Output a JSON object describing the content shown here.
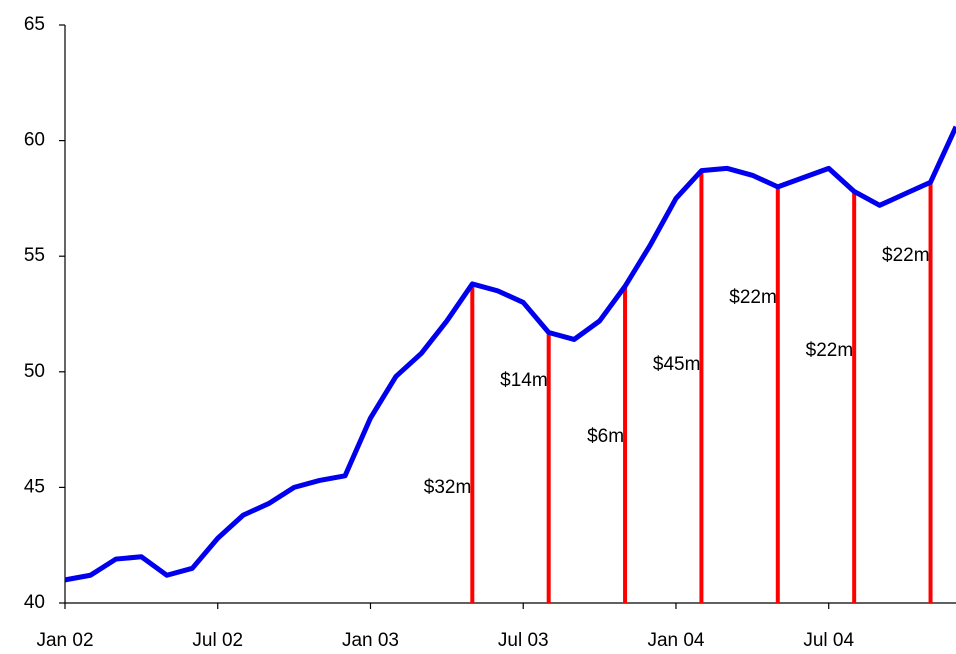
{
  "chart_data": {
    "type": "line",
    "x": [
      "2002-01",
      "2002-02",
      "2002-03",
      "2002-04",
      "2002-05",
      "2002-06",
      "2002-07",
      "2002-08",
      "2002-09",
      "2002-10",
      "2002-11",
      "2002-12",
      "2003-01",
      "2003-02",
      "2003-03",
      "2003-04",
      "2003-05",
      "2003-06",
      "2003-07",
      "2003-08",
      "2003-09",
      "2003-10",
      "2003-11",
      "2003-12",
      "2004-01",
      "2004-02",
      "2004-03",
      "2004-04",
      "2004-05",
      "2004-06",
      "2004-07",
      "2004-08",
      "2004-09",
      "2004-10",
      "2004-11",
      "2004-12"
    ],
    "series": [
      {
        "color": "#0000ee",
        "values": [
          41.0,
          41.2,
          41.9,
          42.0,
          41.2,
          41.5,
          42.8,
          43.8,
          44.3,
          45.0,
          45.3,
          45.5,
          48.0,
          49.8,
          50.8,
          52.2,
          53.8,
          53.5,
          53.0,
          51.7,
          51.4,
          52.2,
          53.7,
          55.5,
          57.5,
          58.7,
          58.8,
          58.5,
          58.0,
          58.4,
          58.8,
          57.8,
          57.2,
          57.7,
          58.2,
          60.6
        ]
      }
    ],
    "events": {
      "color": "#ff0000",
      "x": [
        "2003-05",
        "2003-08",
        "2003-11",
        "2004-02",
        "2004-05",
        "2004-08",
        "2004-11"
      ],
      "values": [
        32,
        14,
        6,
        45,
        22,
        22,
        22
      ],
      "value_labels": [
        "$32m",
        "$14m",
        "$6m",
        "$45m",
        "$22m",
        "$22m",
        "$22m"
      ]
    },
    "xlim": [
      "2002-01",
      "2004-12"
    ],
    "xticks": [
      {
        "value": "2002-01",
        "label": "Jan 02"
      },
      {
        "value": "2002-07",
        "label": "Jul 02"
      },
      {
        "value": "2003-01",
        "label": "Jan 03"
      },
      {
        "value": "2003-07",
        "label": "Jul 03"
      },
      {
        "value": "2004-01",
        "label": "Jan 04"
      },
      {
        "value": "2004-07",
        "label": "Jul 04"
      }
    ],
    "ylim": [
      40,
      65
    ],
    "yticks": [
      40,
      45,
      50,
      55,
      60,
      65
    ],
    "grid": false
  }
}
